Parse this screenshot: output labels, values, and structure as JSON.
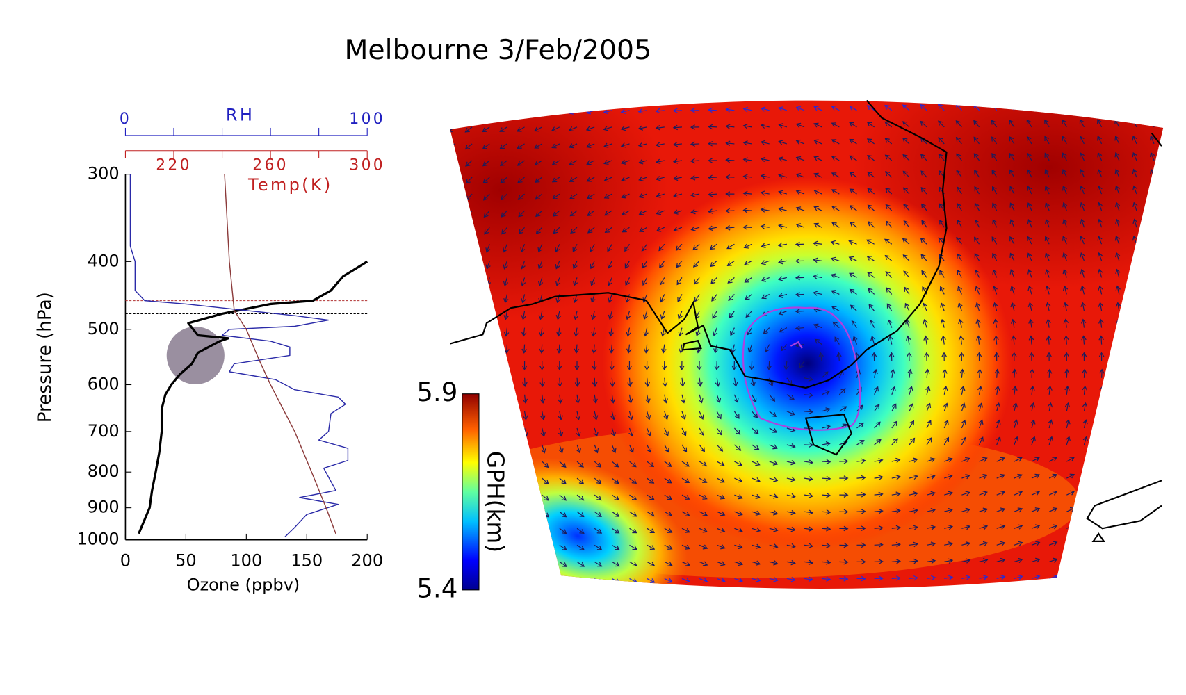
{
  "title": "Melbourne 3/Feb/2005",
  "chart_data": [
    {
      "type": "line",
      "ylabel": "Pressure (hPa)",
      "xlabel": "Ozone (ppbv)",
      "ylim": [
        1000,
        300
      ],
      "yscale": "log",
      "yticks": [
        300,
        400,
        500,
        600,
        700,
        800,
        900,
        1000
      ],
      "xlim": [
        0,
        200
      ],
      "xticks": [
        0,
        50,
        100,
        150,
        200
      ],
      "rh_axis": {
        "label": "RH",
        "lim": [
          0,
          100
        ],
        "ticks": [
          0,
          100
        ],
        "minor_ticks": [
          20,
          40,
          60,
          80
        ],
        "color": "#2020c0"
      },
      "temp_axis": {
        "label": "Temp(K)",
        "lim": [
          200,
          300
        ],
        "ticks": [
          220,
          260,
          300
        ],
        "minor_ticks": [
          200,
          240,
          280
        ],
        "color": "#c02020"
      },
      "series": [
        {
          "axis": "x",
          "color": "#000000",
          "width": 3,
          "pressure": [
            980,
            900,
            850,
            800,
            750,
            700,
            650,
            620,
            600,
            580,
            560,
            540,
            520,
            515,
            510,
            490,
            475,
            460,
            455,
            440,
            420,
            410,
            400
          ],
          "values": [
            11,
            20,
            22,
            25,
            28,
            30,
            30,
            33,
            38,
            45,
            55,
            60,
            78,
            85,
            60,
            52,
            80,
            120,
            155,
            170,
            180,
            190,
            200
          ]
        },
        {
          "axis": "rh",
          "color": "#2a2aa8",
          "width": 1.3,
          "pressure": [
            300,
            380,
            400,
            440,
            455,
            460,
            470,
            478,
            485,
            495,
            500,
            510,
            520,
            530,
            545,
            560,
            575,
            590,
            610,
            625,
            640,
            660,
            700,
            720,
            740,
            770,
            790,
            850,
            870,
            890,
            920,
            960,
            990
          ],
          "values": [
            2,
            2,
            4,
            4,
            8,
            25,
            50,
            70,
            84,
            70,
            43,
            40,
            60,
            68,
            68,
            45,
            43,
            62,
            70,
            88,
            91,
            85,
            84,
            80,
            92,
            92,
            82,
            87,
            72,
            88,
            75,
            70,
            66
          ]
        },
        {
          "axis": "temp",
          "color": "#8b3a3a",
          "width": 1.3,
          "pressure": [
            300,
            400,
            470,
            500,
            550,
            600,
            700,
            800,
            900,
            980
          ],
          "values": [
            241,
            243,
            245,
            250,
            255,
            260,
            270,
            277,
            283,
            287
          ]
        }
      ],
      "reference_lines": [
        {
          "pressure": 455,
          "color": "#b03030"
        },
        {
          "pressure": 475,
          "color": "#000000"
        }
      ],
      "highlight": {
        "x": 58,
        "pressure": 545,
        "color": "#6f5f78"
      }
    },
    {
      "type": "map",
      "colorbar": {
        "label": "GPH(km)",
        "lim": [
          5.4,
          5.9
        ],
        "ticks": [
          5.4,
          5.9
        ]
      }
    }
  ]
}
